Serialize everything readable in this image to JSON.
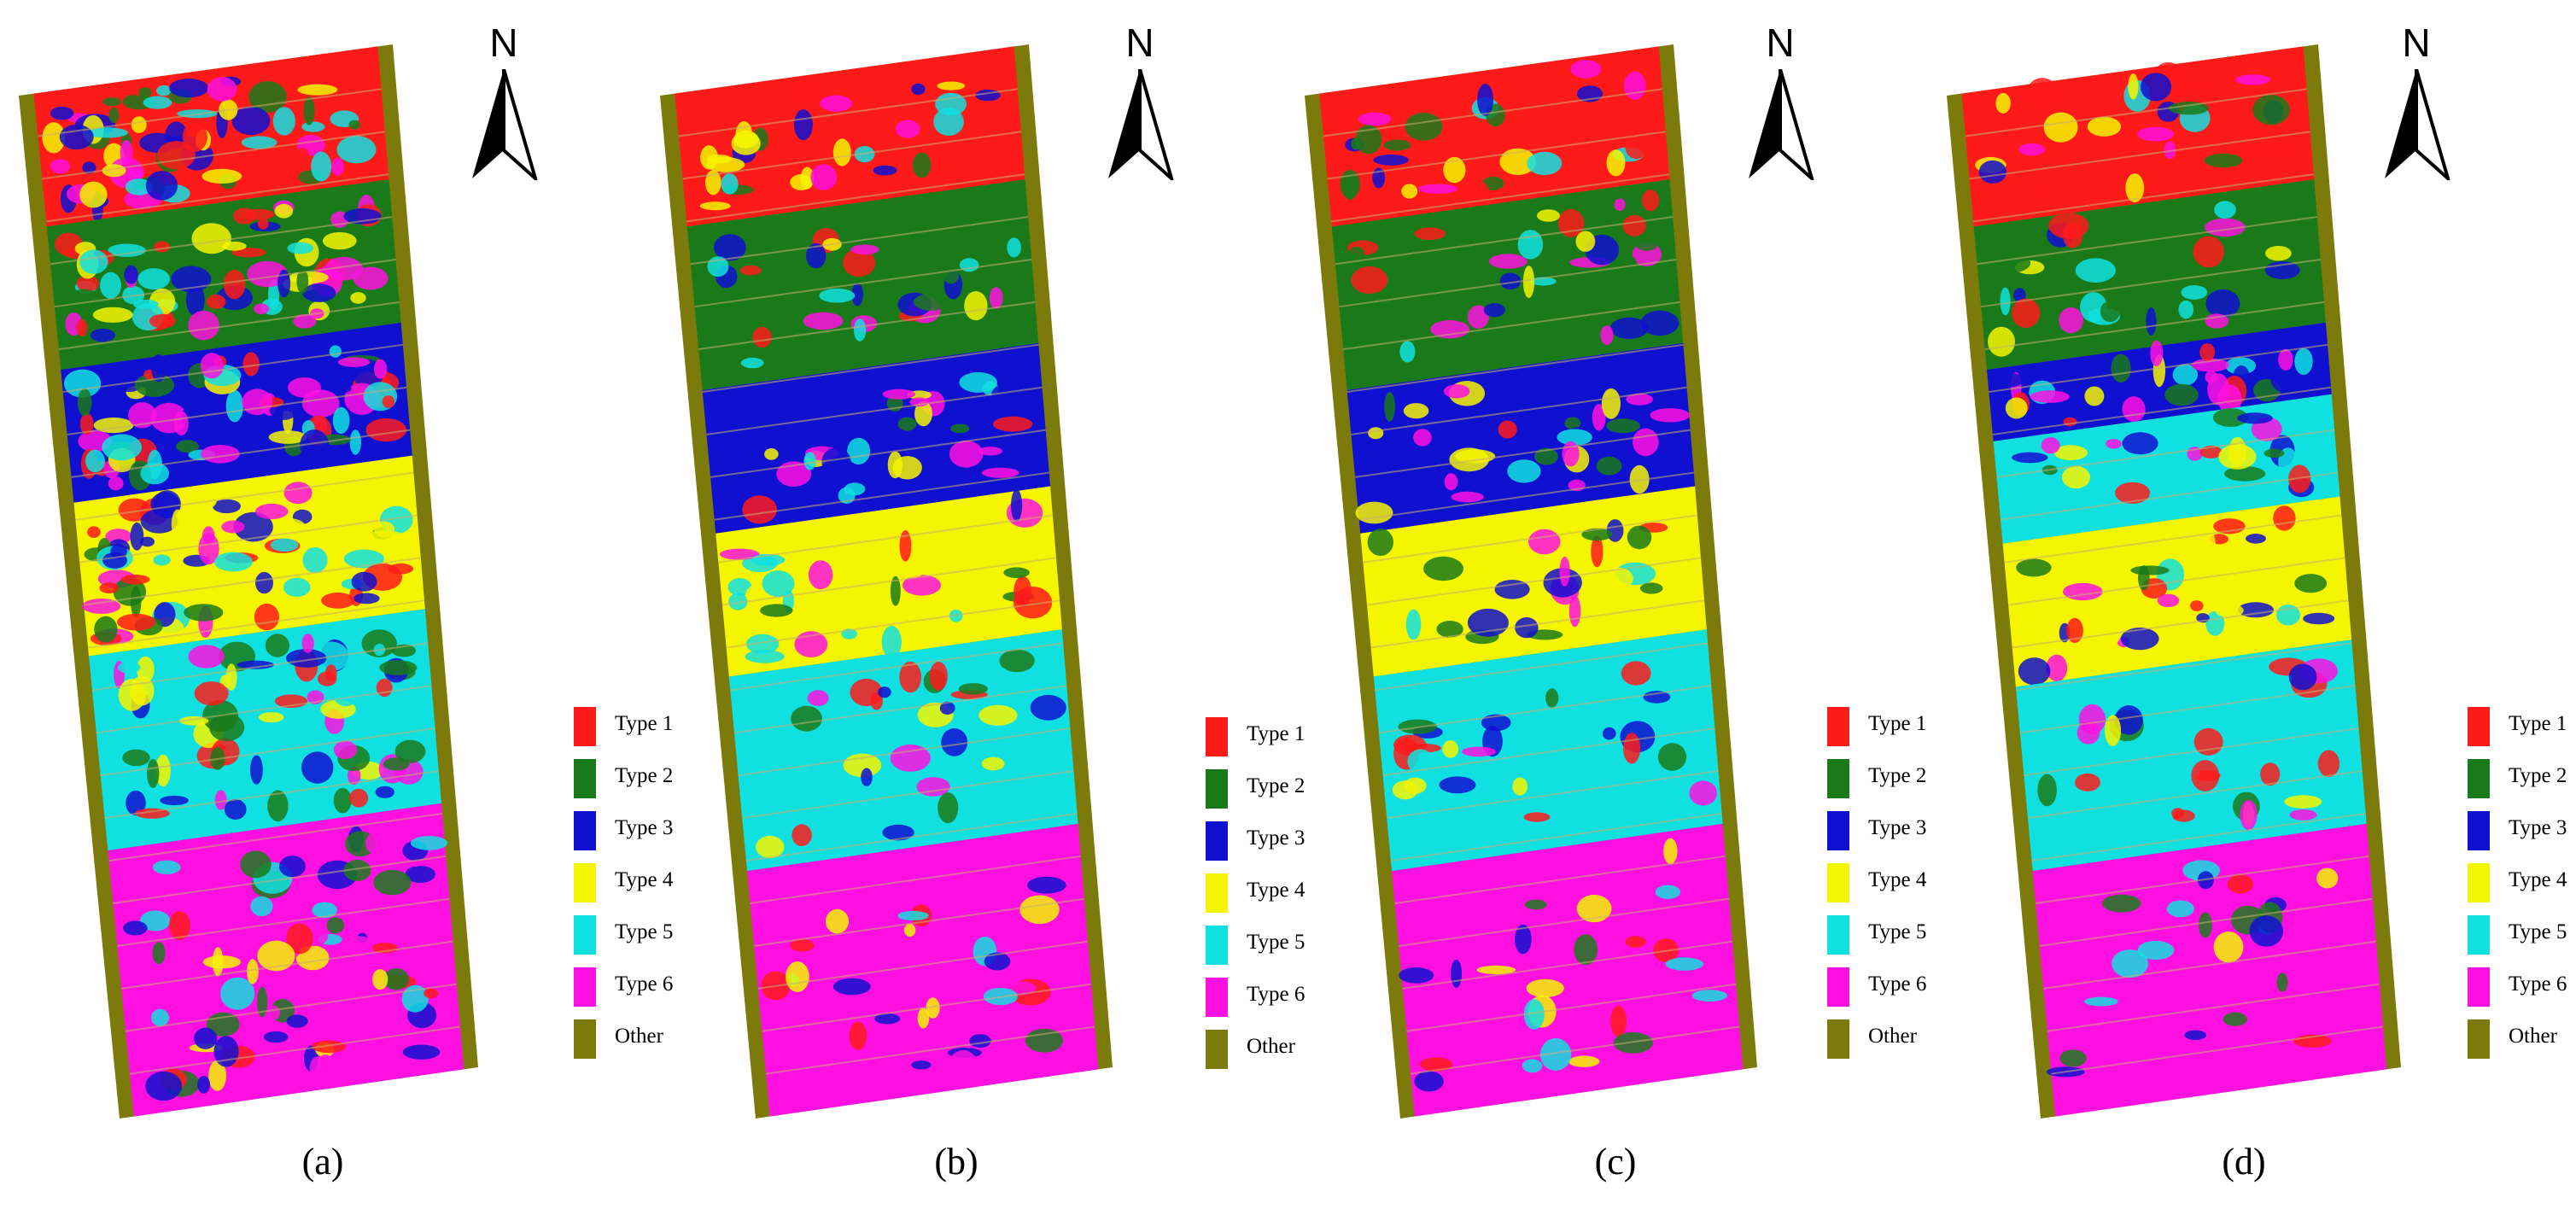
{
  "panels": [
    {
      "label": "(a)",
      "compass": "N"
    },
    {
      "label": "(b)",
      "compass": "N"
    },
    {
      "label": "(c)",
      "compass": "N"
    },
    {
      "label": "(d)",
      "compass": "N"
    }
  ],
  "legend": [
    {
      "label": "Type 1",
      "color": "#ff1a1a"
    },
    {
      "label": "Type 2",
      "color": "#1a7a1a"
    },
    {
      "label": "Type 3",
      "color": "#1010d0"
    },
    {
      "label": "Type 4",
      "color": "#f5f500"
    },
    {
      "label": "Type 5",
      "color": "#10e0e0"
    },
    {
      "label": "Type 6",
      "color": "#ff10e0"
    },
    {
      "label": "Other",
      "color": "#7d7a0c"
    }
  ],
  "colors": {
    "background_field": "#7d7a0c",
    "row_lines": "#c8b070"
  }
}
